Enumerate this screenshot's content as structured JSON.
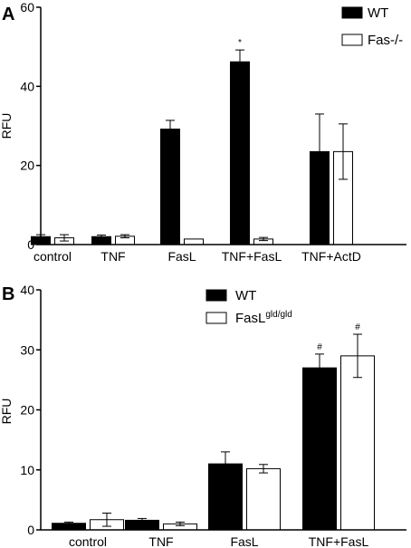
{
  "chart_data": [
    {
      "type": "bar",
      "panel": "A",
      "ylabel": "RFU",
      "xlabel": "",
      "ylim": [
        0,
        60
      ],
      "yticks": [
        0,
        20,
        40,
        60
      ],
      "categories": [
        "control",
        "TNF",
        "FasL",
        "TNF+FasL",
        "TNF+ActD"
      ],
      "legend_position": "top-right",
      "grid": false,
      "series": [
        {
          "name": "WT",
          "color": "#000000",
          "values": [
            2.0,
            2.0,
            29.2,
            46.2,
            23.5
          ],
          "errors": [
            0.5,
            0.4,
            2.2,
            3.0,
            9.5
          ]
        },
        {
          "name": "Fas-/-",
          "color": "#ffffff",
          "values": [
            1.7,
            2.1,
            1.4,
            1.4,
            23.5
          ],
          "errors": [
            0.8,
            0.4,
            0.0,
            0.4,
            7.0
          ]
        }
      ],
      "annotations": [
        {
          "category": "TNF+FasL",
          "series": 0,
          "text": "*"
        }
      ]
    },
    {
      "type": "bar",
      "panel": "B",
      "ylabel": "RFU",
      "xlabel": "",
      "ylim": [
        0,
        40
      ],
      "yticks": [
        0,
        10,
        20,
        30,
        40
      ],
      "categories": [
        "control",
        "TNF",
        "FasL",
        "TNF+FasL"
      ],
      "legend_position": "top-left",
      "grid": false,
      "series": [
        {
          "name": "WT",
          "color": "#000000",
          "values": [
            1.1,
            1.6,
            11.0,
            27.0
          ],
          "errors": [
            0.2,
            0.3,
            2.0,
            2.3
          ]
        },
        {
          "name": "FasL",
          "name_superscript": "gld/gld",
          "color": "#ffffff",
          "values": [
            1.7,
            1.0,
            10.2,
            29.0
          ],
          "errors": [
            1.1,
            0.3,
            0.7,
            3.6
          ]
        }
      ],
      "annotations": [
        {
          "category": "TNF+FasL",
          "series": 0,
          "text": "#"
        },
        {
          "category": "TNF+FasL",
          "series": 1,
          "text": "#"
        }
      ]
    }
  ]
}
